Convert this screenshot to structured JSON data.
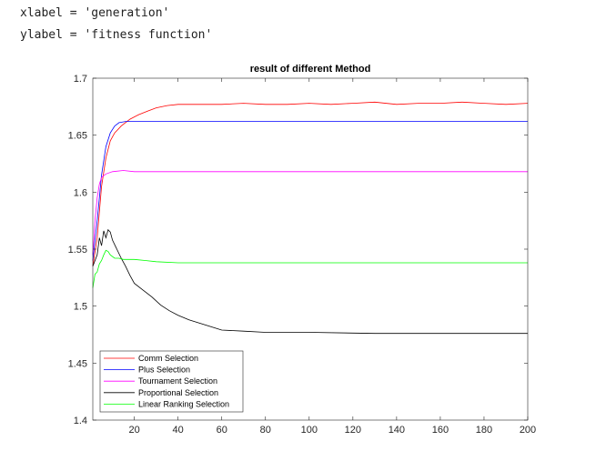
{
  "code_lines": {
    "line1": "xlabel = 'generation'",
    "line2": "ylabel = 'fitness function'"
  },
  "chart_data": {
    "type": "line",
    "title": "result of different Method",
    "xlabel": "",
    "ylabel": "",
    "xlim": [
      1,
      200
    ],
    "ylim": [
      1.4,
      1.7
    ],
    "xticks": [
      20,
      40,
      60,
      80,
      100,
      120,
      140,
      160,
      180,
      200
    ],
    "yticks": [
      1.4,
      1.45,
      1.5,
      1.55,
      1.6,
      1.65,
      1.7
    ],
    "grid": false,
    "legend_position": "bottom-left",
    "series": [
      {
        "name": "Comm Selection",
        "color": "#ff0000",
        "points": [
          [
            1,
            1.535
          ],
          [
            3,
            1.56
          ],
          [
            5,
            1.605
          ],
          [
            7,
            1.63
          ],
          [
            9,
            1.645
          ],
          [
            11,
            1.652
          ],
          [
            14,
            1.658
          ],
          [
            18,
            1.664
          ],
          [
            22,
            1.668
          ],
          [
            26,
            1.671
          ],
          [
            30,
            1.674
          ],
          [
            35,
            1.676
          ],
          [
            40,
            1.677
          ],
          [
            50,
            1.677
          ],
          [
            60,
            1.677
          ],
          [
            70,
            1.678
          ],
          [
            80,
            1.677
          ],
          [
            90,
            1.677
          ],
          [
            100,
            1.678
          ],
          [
            110,
            1.677
          ],
          [
            120,
            1.678
          ],
          [
            130,
            1.679
          ],
          [
            140,
            1.677
          ],
          [
            150,
            1.678
          ],
          [
            160,
            1.678
          ],
          [
            170,
            1.679
          ],
          [
            180,
            1.678
          ],
          [
            190,
            1.677
          ],
          [
            200,
            1.678
          ]
        ]
      },
      {
        "name": "Plus Selection",
        "color": "#0000ff",
        "points": [
          [
            1,
            1.54
          ],
          [
            3,
            1.575
          ],
          [
            5,
            1.615
          ],
          [
            7,
            1.64
          ],
          [
            9,
            1.652
          ],
          [
            11,
            1.658
          ],
          [
            13,
            1.661
          ],
          [
            16,
            1.662
          ],
          [
            20,
            1.662
          ],
          [
            30,
            1.662
          ],
          [
            60,
            1.662
          ],
          [
            100,
            1.662
          ],
          [
            140,
            1.662
          ],
          [
            200,
            1.662
          ]
        ]
      },
      {
        "name": "Tournament Selection",
        "color": "#ff00ff",
        "points": [
          [
            1,
            1.545
          ],
          [
            2,
            1.575
          ],
          [
            3,
            1.595
          ],
          [
            4,
            1.607
          ],
          [
            5,
            1.613
          ],
          [
            7,
            1.616
          ],
          [
            10,
            1.618
          ],
          [
            15,
            1.619
          ],
          [
            20,
            1.618
          ],
          [
            40,
            1.618
          ],
          [
            80,
            1.618
          ],
          [
            120,
            1.618
          ],
          [
            160,
            1.618
          ],
          [
            200,
            1.618
          ]
        ]
      },
      {
        "name": "Proportional Selection",
        "color": "#000000",
        "points": [
          [
            1,
            1.535
          ],
          [
            3,
            1.545
          ],
          [
            4,
            1.56
          ],
          [
            5,
            1.553
          ],
          [
            6,
            1.566
          ],
          [
            7,
            1.56
          ],
          [
            8,
            1.567
          ],
          [
            9,
            1.565
          ],
          [
            10,
            1.558
          ],
          [
            12,
            1.55
          ],
          [
            14,
            1.542
          ],
          [
            16,
            1.535
          ],
          [
            18,
            1.527
          ],
          [
            20,
            1.52
          ],
          [
            24,
            1.514
          ],
          [
            28,
            1.508
          ],
          [
            32,
            1.501
          ],
          [
            36,
            1.496
          ],
          [
            40,
            1.492
          ],
          [
            45,
            1.488
          ],
          [
            50,
            1.485
          ],
          [
            55,
            1.482
          ],
          [
            60,
            1.479
          ],
          [
            70,
            1.478
          ],
          [
            80,
            1.477
          ],
          [
            100,
            1.477
          ],
          [
            130,
            1.476
          ],
          [
            160,
            1.476
          ],
          [
            200,
            1.476
          ]
        ]
      },
      {
        "name": "Linear Ranking Selection",
        "color": "#00ff00",
        "points": [
          [
            1,
            1.516
          ],
          [
            2,
            1.528
          ],
          [
            3,
            1.53
          ],
          [
            4,
            1.537
          ],
          [
            5,
            1.54
          ],
          [
            6,
            1.545
          ],
          [
            7,
            1.549
          ],
          [
            8,
            1.548
          ],
          [
            9,
            1.545
          ],
          [
            11,
            1.542
          ],
          [
            13,
            1.542
          ],
          [
            15,
            1.541
          ],
          [
            20,
            1.541
          ],
          [
            25,
            1.54
          ],
          [
            30,
            1.539
          ],
          [
            40,
            1.538
          ],
          [
            60,
            1.538
          ],
          [
            100,
            1.538
          ],
          [
            150,
            1.538
          ],
          [
            200,
            1.538
          ]
        ]
      }
    ]
  }
}
